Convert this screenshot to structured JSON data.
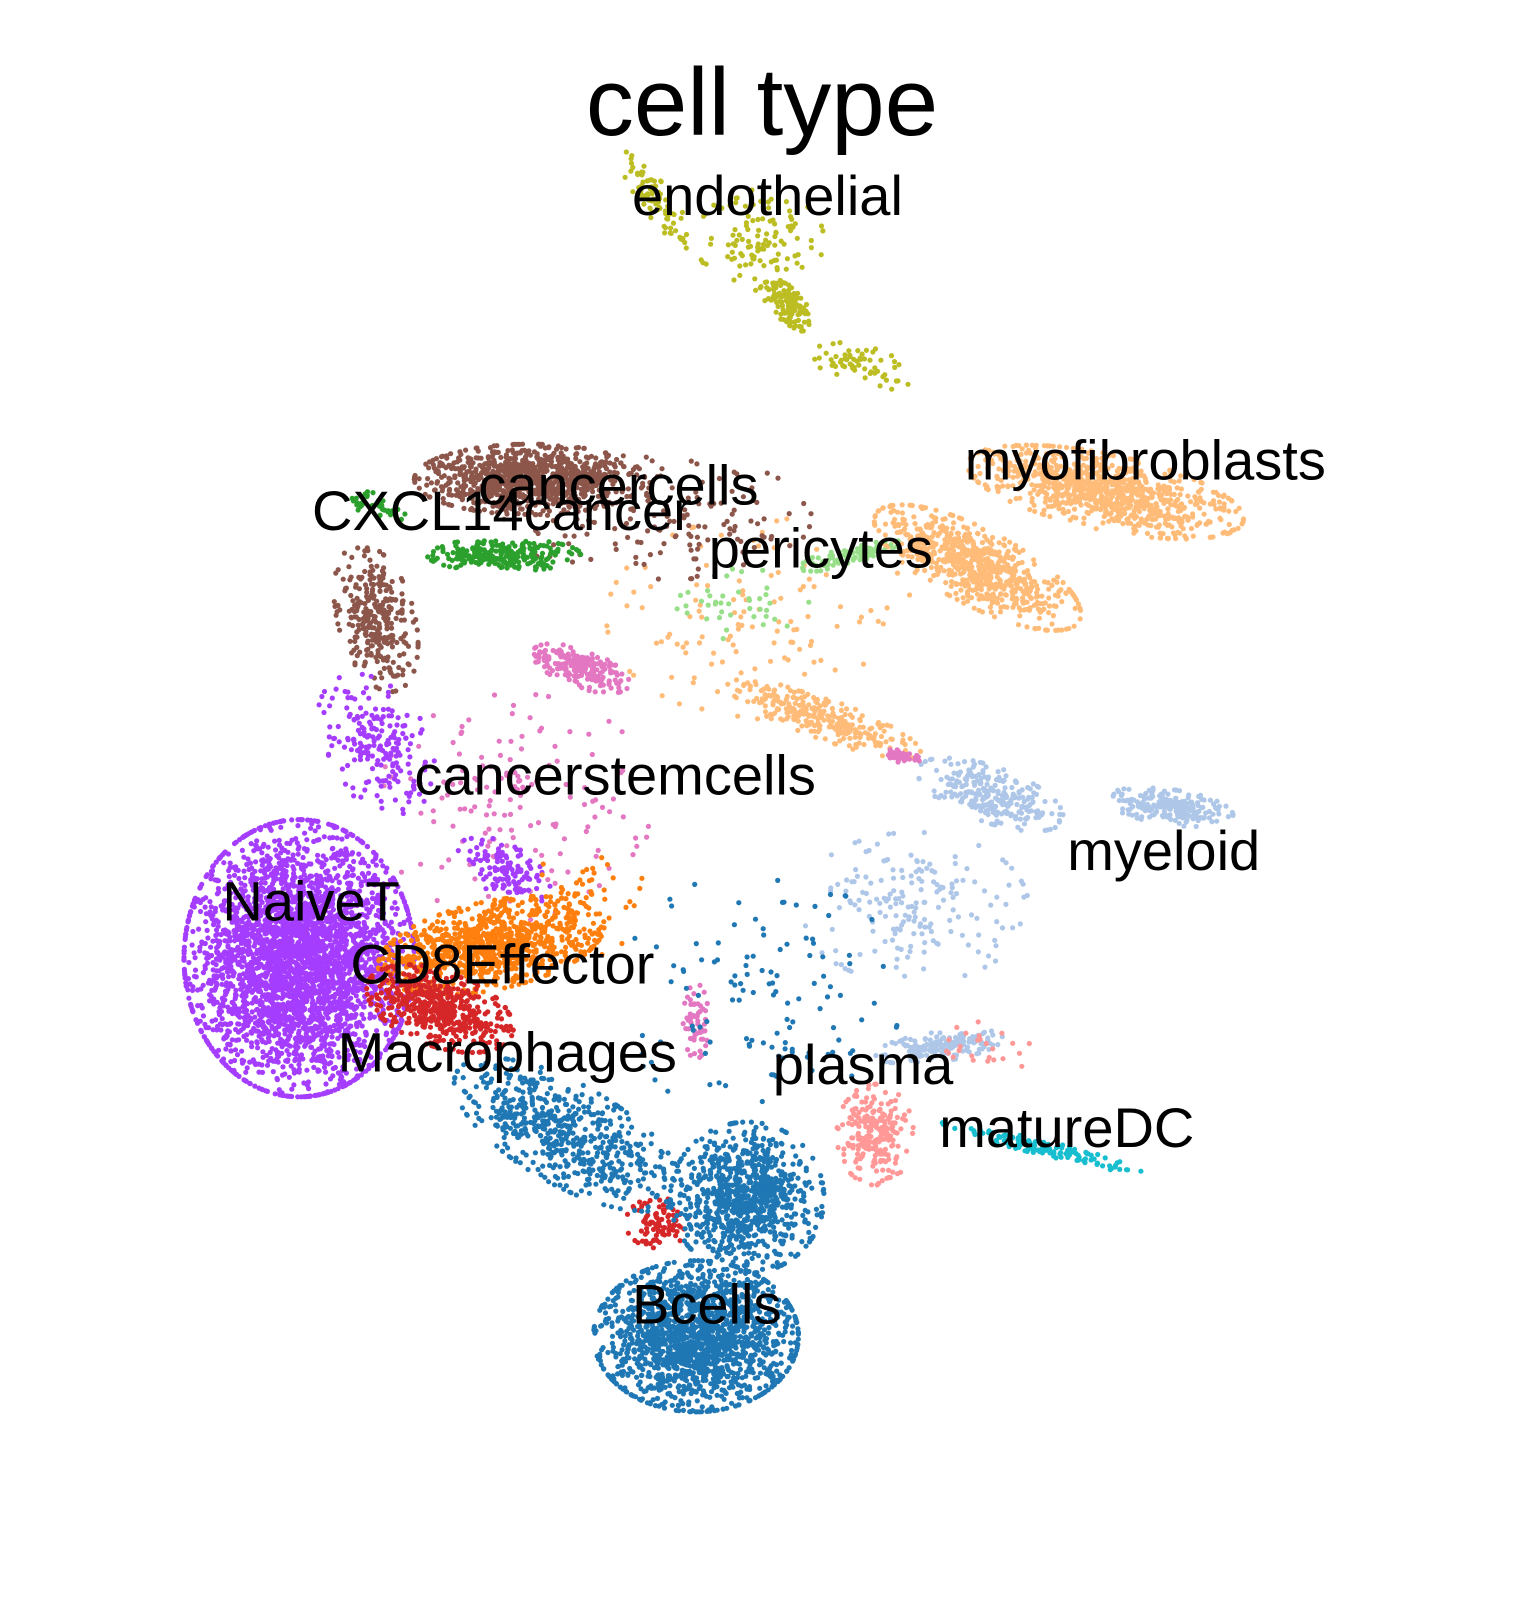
{
  "title": "cell type",
  "chart_data": {
    "type": "scatter",
    "title": "cell type",
    "xlabel": "",
    "ylabel": "",
    "grid": false,
    "legend": "on data",
    "xlim": [
      0,
      100
    ],
    "ylim": [
      0,
      100
    ],
    "series": [
      {
        "name": "myeloid",
        "color": "#aec7e8",
        "label": {
          "x": 74,
          "y": 50
        },
        "blobs": [
          {
            "x": 68,
            "y": 56,
            "rx": 6,
            "ry": 2.2,
            "rot": -20,
            "n": 260
          },
          {
            "x": 82,
            "y": 55,
            "rx": 5,
            "ry": 1.4,
            "rot": -8,
            "n": 220
          },
          {
            "x": 64,
            "y": 36,
            "rx": 5,
            "ry": 1.2,
            "rot": 8,
            "n": 160
          },
          {
            "x": 62,
            "y": 47,
            "rx": 9,
            "ry": 6,
            "rot": 0,
            "n": 180
          }
        ]
      },
      {
        "name": "myofibroblasts",
        "color": "#ffbb78",
        "label": {
          "x": 66,
          "y": 81
        },
        "blobs": [
          {
            "x": 77,
            "y": 80,
            "rx": 11,
            "ry": 3,
            "rot": -12,
            "n": 900
          },
          {
            "x": 67,
            "y": 74,
            "rx": 9,
            "ry": 3,
            "rot": -28,
            "n": 700
          },
          {
            "x": 55,
            "y": 62,
            "rx": 8,
            "ry": 1.6,
            "rot": -20,
            "n": 260
          },
          {
            "x": 50,
            "y": 70,
            "rx": 12,
            "ry": 8,
            "rot": 0,
            "n": 120
          }
        ]
      },
      {
        "name": "endothelial",
        "color": "#bcbd22",
        "label": {
          "x": 40,
          "y": 102
        },
        "blobs": [
          {
            "x": 42,
            "y": 103,
            "rx": 5,
            "ry": 1.2,
            "rot": -55,
            "n": 80
          },
          {
            "x": 52,
            "y": 95,
            "rx": 3,
            "ry": 1.2,
            "rot": -45,
            "n": 120
          },
          {
            "x": 50,
            "y": 100,
            "rx": 5,
            "ry": 4,
            "rot": 0,
            "n": 110
          },
          {
            "x": 58,
            "y": 90,
            "rx": 4,
            "ry": 1.6,
            "rot": -15,
            "n": 60
          }
        ]
      },
      {
        "name": "cancercells",
        "color": "#8c564b",
        "label": {
          "x": 28,
          "y": 79
        },
        "blobs": [
          {
            "x": 32,
            "y": 81,
            "rx": 9,
            "ry": 2.8,
            "rot": 0,
            "n": 1000
          },
          {
            "x": 20,
            "y": 70,
            "rx": 3,
            "ry": 6,
            "rot": 15,
            "n": 300
          },
          {
            "x": 42,
            "y": 78,
            "rx": 12,
            "ry": 5,
            "rot": 0,
            "n": 160
          }
        ]
      },
      {
        "name": "CXCL14cancer",
        "color": "#2ca02c",
        "label": {
          "x": 15,
          "y": 77
        },
        "blobs": [
          {
            "x": 30,
            "y": 75,
            "rx": 6,
            "ry": 1.3,
            "rot": 0,
            "n": 240
          },
          {
            "x": 20,
            "y": 79,
            "rx": 2.5,
            "ry": 1,
            "rot": -20,
            "n": 40
          }
        ]
      },
      {
        "name": "pericytes",
        "color": "#98df8a",
        "label": {
          "x": 46,
          "y": 74
        },
        "blobs": [
          {
            "x": 57,
            "y": 75,
            "rx": 4,
            "ry": 0.8,
            "rot": 15,
            "n": 90
          },
          {
            "x": 48,
            "y": 71,
            "rx": 6,
            "ry": 3,
            "rot": 0,
            "n": 40
          }
        ]
      },
      {
        "name": "cancerstemcells",
        "color": "#e377c2",
        "label": {
          "x": 23,
          "y": 56
        },
        "blobs": [
          {
            "x": 36,
            "y": 66,
            "rx": 4,
            "ry": 1.5,
            "rot": -20,
            "n": 200
          },
          {
            "x": 31,
            "y": 55,
            "rx": 11,
            "ry": 9,
            "rot": 0,
            "n": 150
          },
          {
            "x": 61,
            "y": 59,
            "rx": 1.5,
            "ry": 0.5,
            "rot": -10,
            "n": 40
          },
          {
            "x": 45,
            "y": 38,
            "rx": 1,
            "ry": 3,
            "rot": 0,
            "n": 60
          }
        ]
      },
      {
        "name": "NaiveT",
        "color": "#a53dff",
        "label": {
          "x": 8,
          "y": 46
        },
        "blobs": [
          {
            "x": 14,
            "y": 43,
            "rx": 9,
            "ry": 11,
            "rot": 0,
            "n": 3400
          },
          {
            "x": 20,
            "y": 60,
            "rx": 4,
            "ry": 6,
            "rot": 30,
            "n": 200
          },
          {
            "x": 30,
            "y": 50,
            "rx": 4,
            "ry": 2,
            "rot": -30,
            "n": 120
          }
        ]
      },
      {
        "name": "CD8Effector",
        "color": "#ff7f0e",
        "label": {
          "x": 18,
          "y": 41
        },
        "blobs": [
          {
            "x": 29,
            "y": 44,
            "rx": 9,
            "ry": 3.5,
            "rot": 12,
            "n": 900
          },
          {
            "x": 36,
            "y": 48,
            "rx": 5,
            "ry": 5,
            "rot": 0,
            "n": 50
          }
        ]
      },
      {
        "name": "Macrophages",
        "color": "#d62728",
        "label": {
          "x": 17,
          "y": 34
        },
        "blobs": [
          {
            "x": 25,
            "y": 39,
            "rx": 6,
            "ry": 3,
            "rot": -20,
            "n": 500
          },
          {
            "x": 42,
            "y": 22,
            "rx": 2.5,
            "ry": 2,
            "rot": 0,
            "n": 90
          }
        ]
      },
      {
        "name": "Bcells",
        "color": "#1f77b4",
        "label": {
          "x": 40,
          "y": 14
        },
        "blobs": [
          {
            "x": 45,
            "y": 13,
            "rx": 8,
            "ry": 6,
            "rot": 0,
            "n": 1700
          },
          {
            "x": 49,
            "y": 24,
            "rx": 6,
            "ry": 6,
            "rot": -25,
            "n": 900
          },
          {
            "x": 35,
            "y": 29,
            "rx": 10,
            "ry": 4,
            "rot": -30,
            "n": 600
          },
          {
            "x": 50,
            "y": 40,
            "rx": 11,
            "ry": 10,
            "rot": 0,
            "n": 120
          }
        ]
      },
      {
        "name": "plasma",
        "color": "#ff9896",
        "label": {
          "x": 51,
          "y": 33
        },
        "blobs": [
          {
            "x": 59,
            "y": 29,
            "rx": 3,
            "ry": 4,
            "rot": 0,
            "n": 230
          },
          {
            "x": 68,
            "y": 36,
            "rx": 4,
            "ry": 2,
            "rot": 0,
            "n": 25
          }
        ]
      },
      {
        "name": "matureDC",
        "color": "#17becf",
        "label": {
          "x": 64,
          "y": 28
        },
        "blobs": [
          {
            "x": 72,
            "y": 28,
            "rx": 8,
            "ry": 0.6,
            "rot": -14,
            "n": 130
          }
        ]
      }
    ]
  }
}
